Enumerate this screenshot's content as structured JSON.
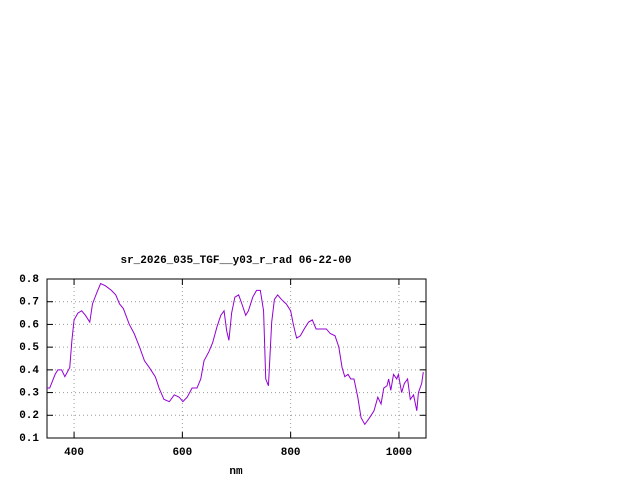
{
  "chart_data": {
    "type": "line",
    "title": "sr_2026_035_TGF__y03_r_rad 06-22-00",
    "xlabel": "nm",
    "xlim": [
      350,
      1050
    ],
    "xticks": [
      400,
      600,
      800,
      1000
    ],
    "ylim": [
      0.1,
      0.8
    ],
    "yticks": [
      0.1,
      0.2,
      0.3,
      0.4,
      0.5,
      0.6,
      0.7,
      0.8
    ],
    "grid": true,
    "series": [
      {
        "color": "#9400d3",
        "x": [
          350,
          355,
          365,
          370,
          377,
          383,
          392,
          396,
          400,
          407,
          414,
          421,
          429,
          434,
          442,
          449,
          458,
          469,
          477,
          484,
          491,
          502,
          511,
          521,
          530,
          539,
          550,
          557,
          566,
          576,
          585,
          594,
          601,
          609,
          618,
          627,
          634,
          640,
          649,
          656,
          664,
          671,
          677,
          682,
          686,
          691,
          697,
          704,
          710,
          717,
          722,
          730,
          737,
          744,
          750,
          754,
          759,
          765,
          770,
          776,
          783,
          792,
          800,
          805,
          811,
          818,
          825,
          833,
          840,
          847,
          856,
          866,
          873,
          882,
          889,
          895,
          900,
          906,
          911,
          917,
          924,
          930,
          937,
          946,
          954,
          961,
          967,
          972,
          978,
          981,
          985,
          990,
          996,
          999,
          1005,
          1010,
          1016,
          1021,
          1027,
          1033,
          1036,
          1042,
          1045
        ],
        "values": [
          0.32,
          0.32,
          0.38,
          0.4,
          0.4,
          0.37,
          0.41,
          0.53,
          0.62,
          0.65,
          0.66,
          0.64,
          0.61,
          0.69,
          0.74,
          0.78,
          0.77,
          0.75,
          0.73,
          0.69,
          0.67,
          0.6,
          0.56,
          0.5,
          0.44,
          0.41,
          0.37,
          0.32,
          0.27,
          0.26,
          0.29,
          0.28,
          0.26,
          0.28,
          0.32,
          0.32,
          0.36,
          0.44,
          0.48,
          0.52,
          0.59,
          0.64,
          0.66,
          0.57,
          0.53,
          0.65,
          0.72,
          0.73,
          0.69,
          0.64,
          0.66,
          0.72,
          0.75,
          0.75,
          0.66,
          0.36,
          0.33,
          0.61,
          0.71,
          0.73,
          0.71,
          0.69,
          0.66,
          0.6,
          0.54,
          0.55,
          0.58,
          0.61,
          0.62,
          0.58,
          0.58,
          0.58,
          0.56,
          0.55,
          0.5,
          0.41,
          0.37,
          0.38,
          0.36,
          0.36,
          0.28,
          0.19,
          0.16,
          0.19,
          0.22,
          0.28,
          0.25,
          0.32,
          0.33,
          0.36,
          0.31,
          0.38,
          0.36,
          0.38,
          0.3,
          0.34,
          0.36,
          0.27,
          0.29,
          0.22,
          0.3,
          0.34,
          0.39
        ]
      }
    ]
  }
}
